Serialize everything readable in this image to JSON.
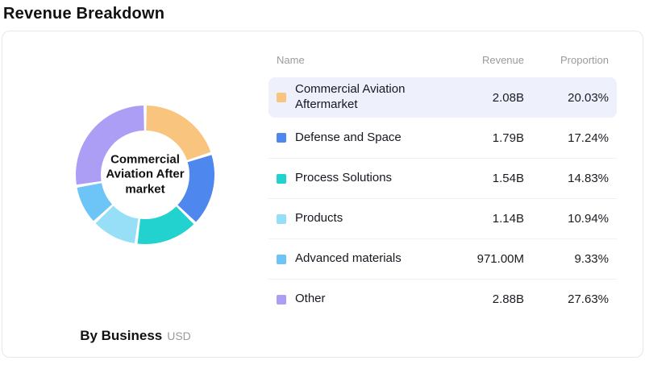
{
  "page_title": "Revenue Breakdown",
  "card": {
    "chart_caption": {
      "label": "By Business",
      "unit": "USD"
    },
    "donut_center_label": "Commercial Aviation Aftermarket",
    "table": {
      "headers": {
        "name": "Name",
        "revenue": "Revenue",
        "proportion": "Proportion"
      },
      "rows": [
        {
          "name": "Commercial Aviation Aftermarket",
          "revenue": "2.08B",
          "proportion": "20.03%",
          "color": "#f9c47e",
          "highlighted": true
        },
        {
          "name": "Defense and Space",
          "revenue": "1.79B",
          "proportion": "17.24%",
          "color": "#4e87ee",
          "highlighted": false
        },
        {
          "name": "Process Solutions",
          "revenue": "1.54B",
          "proportion": "14.83%",
          "color": "#21d2ce",
          "highlighted": false
        },
        {
          "name": "Products",
          "revenue": "1.14B",
          "proportion": "10.94%",
          "color": "#97def7",
          "highlighted": false
        },
        {
          "name": "Advanced materials",
          "revenue": "971.00M",
          "proportion": "9.33%",
          "color": "#6cc5f6",
          "highlighted": false
        },
        {
          "name": "Other",
          "revenue": "2.88B",
          "proportion": "27.63%",
          "color": "#ac9ef5",
          "highlighted": false
        }
      ]
    }
  },
  "chart_data": {
    "type": "pie",
    "title": "By Business",
    "unit": "USD",
    "categories": [
      "Commercial Aviation Aftermarket",
      "Defense and Space",
      "Process Solutions",
      "Products",
      "Advanced materials",
      "Other"
    ],
    "values": [
      20.03,
      17.24,
      14.83,
      10.94,
      9.33,
      27.63
    ],
    "revenue_labels": [
      "2.08B",
      "1.79B",
      "1.54B",
      "1.14B",
      "971.00M",
      "2.88B"
    ],
    "colors": [
      "#f9c47e",
      "#4e87ee",
      "#21d2ce",
      "#97def7",
      "#6cc5f6",
      "#ac9ef5"
    ],
    "legend_position": "right",
    "donut": true,
    "start_angle_deg": -90,
    "direction": "clockwise"
  }
}
